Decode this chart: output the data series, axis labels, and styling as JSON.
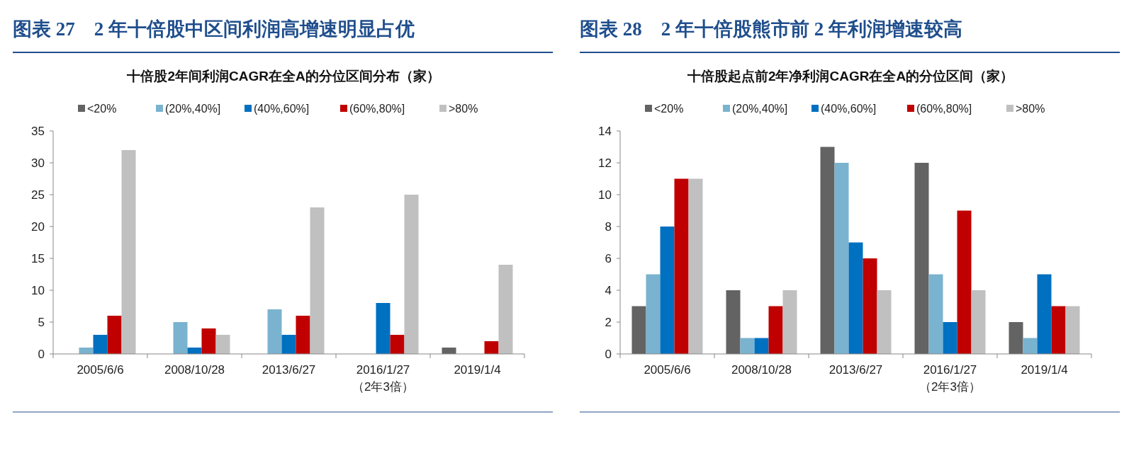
{
  "chart_data": [
    {
      "type": "bar",
      "title": "图表 27　2 年十倍股中区间利润高增速明显占优",
      "subtitle": "十倍股2年间利润CAGR在全A的分位区间分布（家）",
      "categories": [
        "2005/6/6",
        "2008/10/28",
        "2013/6/27",
        "2016/1/27\n（2年3倍）",
        "2019/1/4"
      ],
      "ylim": [
        0,
        35
      ],
      "yticks": [
        0,
        5,
        10,
        15,
        20,
        25,
        30,
        35
      ],
      "legend": "top",
      "series": [
        {
          "name": "<20%",
          "color": "#636363",
          "values": [
            0,
            0,
            0,
            0,
            1
          ]
        },
        {
          "name": "(20%,40%]",
          "color": "#7ab3cf",
          "values": [
            1,
            5,
            7,
            0,
            0
          ]
        },
        {
          "name": "(40%,60%]",
          "color": "#0070c0",
          "values": [
            3,
            1,
            3,
            8,
            0
          ]
        },
        {
          "name": "(60%,80%]",
          "color": "#c00000",
          "values": [
            6,
            4,
            6,
            3,
            2
          ]
        },
        {
          "name": ">80%",
          "color": "#c0c0c0",
          "values": [
            32,
            3,
            23,
            25,
            14
          ]
        }
      ]
    },
    {
      "type": "bar",
      "title": "图表 28　2 年十倍股熊市前 2 年利润增速较高",
      "subtitle": "十倍股起点前2年净利润CAGR在全A的分位区间（家）",
      "categories": [
        "2005/6/6",
        "2008/10/28",
        "2013/6/27",
        "2016/1/27\n（2年3倍）",
        "2019/1/4"
      ],
      "ylim": [
        0,
        14
      ],
      "yticks": [
        0,
        2,
        4,
        6,
        8,
        10,
        12,
        14
      ],
      "legend": "top",
      "series": [
        {
          "name": "<20%",
          "color": "#636363",
          "values": [
            3,
            4,
            13,
            12,
            2
          ]
        },
        {
          "name": "(20%,40%]",
          "color": "#7ab3cf",
          "values": [
            5,
            1,
            12,
            5,
            1
          ]
        },
        {
          "name": "(40%,60%]",
          "color": "#0070c0",
          "values": [
            8,
            1,
            7,
            2,
            5
          ]
        },
        {
          "name": "(60%,80%]",
          "color": "#c00000",
          "values": [
            11,
            3,
            6,
            9,
            3
          ]
        },
        {
          "name": ">80%",
          "color": "#c0c0c0",
          "values": [
            11,
            4,
            4,
            4,
            3
          ]
        }
      ]
    }
  ]
}
